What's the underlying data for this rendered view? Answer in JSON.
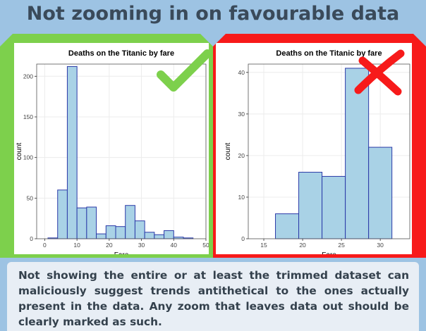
{
  "headline": "Not zooming in on favourable data",
  "caption": "Not showing the entire or at least the trimmed dataset can maliciously suggest trends antithetical to the ones actually present in the data. Any zoom that leaves data out should be clearly marked as such.",
  "colors": {
    "good": "#7dd04c",
    "bad": "#f71a1a",
    "bar_fill": "#a9d2e6",
    "bar_stroke": "#2b3aa8"
  },
  "icons": {
    "good": "check-mark-icon",
    "bad": "cross-mark-icon"
  },
  "chart_data": [
    {
      "type": "bar",
      "title": "Deaths on the Titanic by fare",
      "xlabel": "Fare",
      "ylabel": "count",
      "xlim": [
        -2.5,
        50
      ],
      "ylim": [
        0,
        215
      ],
      "xticks": [
        0,
        10,
        20,
        30,
        40,
        50
      ],
      "yticks": [
        0,
        50,
        100,
        150,
        200
      ],
      "bin_width": 3,
      "bins": [
        {
          "x0": 1,
          "x1": 4,
          "count": 1
        },
        {
          "x0": 4,
          "x1": 7,
          "count": 60
        },
        {
          "x0": 7,
          "x1": 10,
          "count": 212
        },
        {
          "x0": 10,
          "x1": 13,
          "count": 38
        },
        {
          "x0": 13,
          "x1": 16,
          "count": 39
        },
        {
          "x0": 16,
          "x1": 19,
          "count": 6
        },
        {
          "x0": 19,
          "x1": 22,
          "count": 16
        },
        {
          "x0": 22,
          "x1": 25,
          "count": 15
        },
        {
          "x0": 25,
          "x1": 28,
          "count": 41
        },
        {
          "x0": 28,
          "x1": 31,
          "count": 22
        },
        {
          "x0": 31,
          "x1": 34,
          "count": 8
        },
        {
          "x0": 34,
          "x1": 37,
          "count": 5
        },
        {
          "x0": 37,
          "x1": 40,
          "count": 10
        },
        {
          "x0": 40,
          "x1": 43,
          "count": 2
        },
        {
          "x0": 43,
          "x1": 46,
          "count": 1
        }
      ],
      "grid": true
    },
    {
      "type": "bar",
      "title": "Deaths on the Titanic by fare",
      "xlabel": "Fare",
      "ylabel": "count",
      "xlim": [
        13,
        33.8
      ],
      "ylim": [
        0,
        42
      ],
      "xticks": [
        15,
        20,
        25,
        30
      ],
      "yticks": [
        0,
        10,
        20,
        30,
        40
      ],
      "bin_width": 3,
      "bins": [
        {
          "x0": 16.5,
          "x1": 19.5,
          "count": 6
        },
        {
          "x0": 19.5,
          "x1": 22.5,
          "count": 16
        },
        {
          "x0": 22.5,
          "x1": 25.5,
          "count": 15
        },
        {
          "x0": 25.5,
          "x1": 28.5,
          "count": 41
        },
        {
          "x0": 28.5,
          "x1": 31.5,
          "count": 22
        }
      ],
      "grid": true
    }
  ]
}
